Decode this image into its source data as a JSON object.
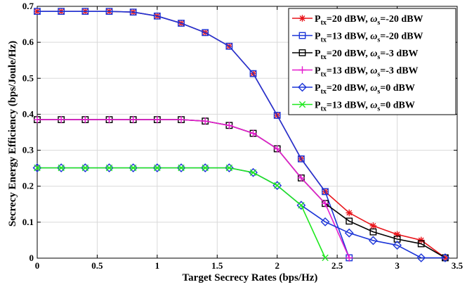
{
  "chart_data": {
    "type": "line",
    "xlabel": "Target Secrecy Rates (bps/Hz)",
    "ylabel": "Secrecy Energy Efficiency (bps/Joule/Hz)",
    "xlim": [
      0,
      3.5
    ],
    "ylim": [
      0,
      0.7
    ],
    "xticks": [
      0,
      0.5,
      1,
      1.5,
      2,
      2.5,
      3,
      3.5
    ],
    "yticks": [
      0,
      0.1,
      0.2,
      0.3,
      0.4,
      0.5,
      0.6,
      0.7
    ],
    "xtick_labels": [
      "0",
      "0.5",
      "1",
      "1.5",
      "2",
      "2.5",
      "3",
      "3.5"
    ],
    "ytick_labels": [
      "0",
      "0.1",
      "0.2",
      "0.3",
      "0.4",
      "0.5",
      "0.6",
      "0.7"
    ],
    "grid": true,
    "legend_position": "top-right",
    "series": [
      {
        "name": "Ptx=20 dBW, ωs=-20 dBW",
        "legend": {
          "p_main": "P",
          "p_sub": "tx",
          "p_rest": "=20 dBW, ",
          "w_main": "ω",
          "w_sub": "s",
          "w_rest": "=-20 dBW"
        },
        "color": "#e8151b",
        "marker": "star",
        "x": [
          0,
          0.2,
          0.4,
          0.6,
          0.8,
          1.0,
          1.2,
          1.4,
          1.6,
          1.8,
          2.0,
          2.2,
          2.4,
          2.6,
          2.8,
          3.0,
          3.2,
          3.4
        ],
        "y": [
          0.686,
          0.686,
          0.686,
          0.686,
          0.684,
          0.673,
          0.653,
          0.627,
          0.589,
          0.513,
          0.397,
          0.276,
          0.185,
          0.126,
          0.09,
          0.066,
          0.05,
          0.001
        ]
      },
      {
        "name": "Ptx=13 dBW, ωs=-20 dBW",
        "legend": {
          "p_main": "P",
          "p_sub": "tx",
          "p_rest": "=13 dBW, ",
          "w_main": "ω",
          "w_sub": "s",
          "w_rest": "=-20 dBW"
        },
        "color": "#1c35d8",
        "marker": "square",
        "x": [
          0,
          0.2,
          0.4,
          0.6,
          0.8,
          1.0,
          1.2,
          1.4,
          1.6,
          1.8,
          2.0,
          2.2,
          2.4,
          2.6
        ],
        "y": [
          0.686,
          0.686,
          0.686,
          0.686,
          0.684,
          0.673,
          0.653,
          0.627,
          0.589,
          0.513,
          0.397,
          0.276,
          0.185,
          0.001
        ]
      },
      {
        "name": "Ptx=20 dBW, ωs=-3 dBW",
        "legend": {
          "p_main": "P",
          "p_sub": "tx",
          "p_rest": "=20 dBW, ",
          "w_main": "ω",
          "w_sub": "s",
          "w_rest": "=-3 dBW"
        },
        "color": "#000000",
        "marker": "square",
        "x": [
          0,
          0.2,
          0.4,
          0.6,
          0.8,
          1.0,
          1.2,
          1.4,
          1.6,
          1.8,
          2.0,
          2.2,
          2.4,
          2.6,
          2.8,
          3.0,
          3.2,
          3.4
        ],
        "y": [
          0.385,
          0.385,
          0.385,
          0.385,
          0.385,
          0.385,
          0.385,
          0.381,
          0.369,
          0.347,
          0.304,
          0.223,
          0.152,
          0.103,
          0.073,
          0.053,
          0.04,
          0.001
        ]
      },
      {
        "name": "Ptx=13 dBW, ωs=-3 dBW",
        "legend": {
          "p_main": "P",
          "p_sub": "tx",
          "p_rest": "=13 dBW, ",
          "w_main": "ω",
          "w_sub": "s",
          "w_rest": "=-3 dBW"
        },
        "color": "#e61ccf",
        "marker": "plus",
        "x": [
          0,
          0.2,
          0.4,
          0.6,
          0.8,
          1.0,
          1.2,
          1.4,
          1.6,
          1.8,
          2.0,
          2.2,
          2.4,
          2.6
        ],
        "y": [
          0.385,
          0.385,
          0.385,
          0.385,
          0.385,
          0.385,
          0.385,
          0.381,
          0.369,
          0.347,
          0.304,
          0.223,
          0.152,
          0.001
        ]
      },
      {
        "name": "Ptx=20 dBW, ωs=0 dBW",
        "legend": {
          "p_main": "P",
          "p_sub": "tx",
          "p_rest": "=20 dBW, ",
          "w_main": "ω",
          "w_sub": "s",
          "w_rest": "=0 dBW"
        },
        "color": "#1c35d8",
        "marker": "diamond",
        "x": [
          0,
          0.2,
          0.4,
          0.6,
          0.8,
          1.0,
          1.2,
          1.4,
          1.6,
          1.8,
          2.0,
          2.2,
          2.4,
          2.6,
          2.8,
          3.0,
          3.2,
          3.4
        ],
        "y": [
          0.251,
          0.251,
          0.251,
          0.251,
          0.251,
          0.251,
          0.251,
          0.251,
          0.251,
          0.238,
          0.202,
          0.147,
          0.101,
          0.07,
          0.049,
          0.036,
          0.001,
          0.001
        ]
      },
      {
        "name": "Ptx=13 dBW, ωs=0 dBW",
        "legend": {
          "p_main": "P",
          "p_sub": "tx",
          "p_rest": "=13 dBW, ",
          "w_main": "ω",
          "w_sub": "s",
          "w_rest": "=0 dBW"
        },
        "color": "#1fe81f",
        "marker": "x",
        "x": [
          0,
          0.2,
          0.4,
          0.6,
          0.8,
          1.0,
          1.2,
          1.4,
          1.6,
          1.8,
          2.0,
          2.2,
          2.4
        ],
        "y": [
          0.251,
          0.251,
          0.251,
          0.251,
          0.251,
          0.251,
          0.251,
          0.251,
          0.251,
          0.238,
          0.202,
          0.147,
          0.001
        ]
      }
    ]
  }
}
